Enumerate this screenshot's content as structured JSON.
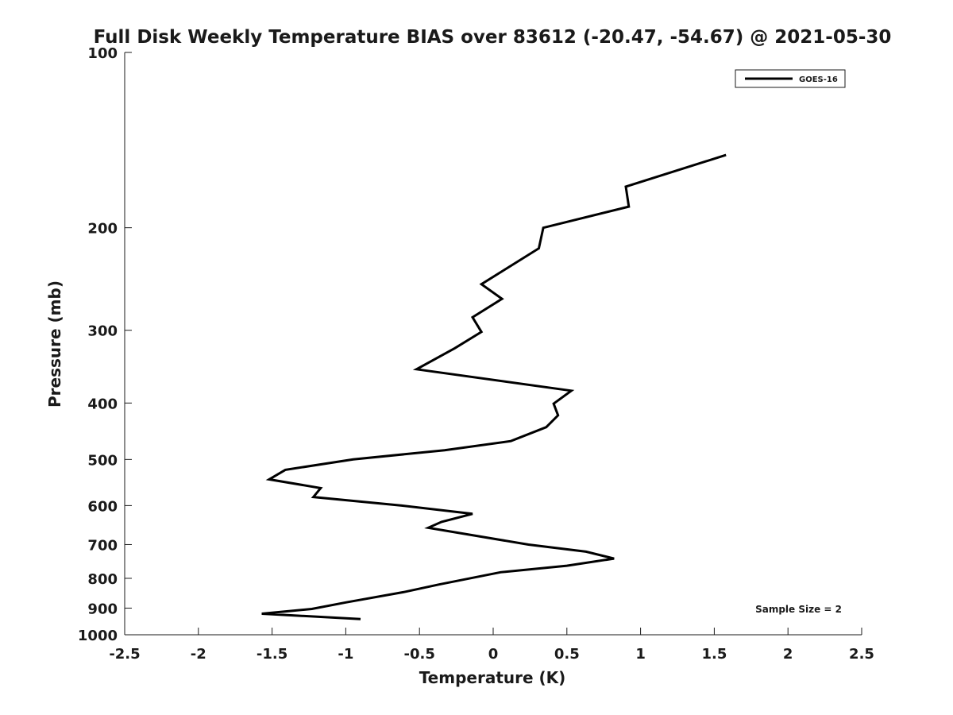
{
  "chart_data": {
    "type": "line",
    "title": "Full Disk Weekly Temperature BIAS over 83612 (-20.47, -54.67) @ 2021-05-30",
    "xlabel": "Temperature (K)",
    "ylabel": "Pressure (mb)",
    "xlim": [
      -2.5,
      2.5
    ],
    "ylim": [
      1000,
      100
    ],
    "yscale": "log",
    "y_reversed": true,
    "grid": false,
    "legend_position": "top-right",
    "xticks": [
      "-2.5",
      "-2",
      "-1.5",
      "-1",
      "-0.5",
      "0",
      "0.5",
      "1",
      "1.5",
      "2",
      "2.5"
    ],
    "yticks": [
      "100",
      "200",
      "300",
      "400",
      "500",
      "600",
      "700",
      "800",
      "900",
      "1000"
    ],
    "annotation": "Sample Size = 2",
    "series": [
      {
        "name": "GOES-16",
        "color": "#000000",
        "points": [
          {
            "x": 1.58,
            "y": 150
          },
          {
            "x": 0.9,
            "y": 170
          },
          {
            "x": 0.92,
            "y": 184
          },
          {
            "x": 0.34,
            "y": 200
          },
          {
            "x": 0.31,
            "y": 217
          },
          {
            "x": -0.08,
            "y": 250
          },
          {
            "x": 0.06,
            "y": 265
          },
          {
            "x": -0.14,
            "y": 285
          },
          {
            "x": -0.08,
            "y": 302
          },
          {
            "x": -0.26,
            "y": 322
          },
          {
            "x": -0.52,
            "y": 350
          },
          {
            "x": 0.53,
            "y": 381
          },
          {
            "x": 0.41,
            "y": 401
          },
          {
            "x": 0.44,
            "y": 420
          },
          {
            "x": 0.36,
            "y": 440
          },
          {
            "x": 0.12,
            "y": 465
          },
          {
            "x": -0.33,
            "y": 482
          },
          {
            "x": -0.95,
            "y": 500
          },
          {
            "x": -1.41,
            "y": 521
          },
          {
            "x": -1.52,
            "y": 541
          },
          {
            "x": -1.17,
            "y": 560
          },
          {
            "x": -1.22,
            "y": 580
          },
          {
            "x": -0.62,
            "y": 600
          },
          {
            "x": -0.14,
            "y": 620
          },
          {
            "x": -0.35,
            "y": 640
          },
          {
            "x": -0.44,
            "y": 655
          },
          {
            "x": 0.24,
            "y": 700
          },
          {
            "x": 0.63,
            "y": 720
          },
          {
            "x": 0.82,
            "y": 740
          },
          {
            "x": 0.5,
            "y": 761
          },
          {
            "x": 0.05,
            "y": 781
          },
          {
            "x": -0.37,
            "y": 820
          },
          {
            "x": -0.61,
            "y": 845
          },
          {
            "x": -1.0,
            "y": 880
          },
          {
            "x": -1.23,
            "y": 903
          },
          {
            "x": -1.57,
            "y": 920
          },
          {
            "x": -0.9,
            "y": 940
          }
        ]
      }
    ]
  }
}
